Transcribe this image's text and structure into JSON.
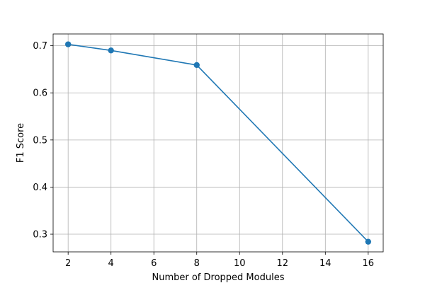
{
  "chart_data": {
    "type": "line",
    "title": "",
    "xlabel": "Number of Dropped Modules",
    "ylabel": "F1 Score",
    "xlim": [
      1.3,
      16.7
    ],
    "ylim": [
      0.2625,
      0.725
    ],
    "xticks": [
      2,
      4,
      6,
      8,
      10,
      12,
      14,
      16
    ],
    "yticks": [
      0.3,
      0.4,
      0.5,
      0.6,
      0.7
    ],
    "xtick_labels": [
      "2",
      "4",
      "6",
      "8",
      "10",
      "12",
      "14",
      "16"
    ],
    "ytick_labels": [
      "0.3",
      "0.4",
      "0.5",
      "0.6",
      "0.7"
    ],
    "grid": true,
    "series": [
      {
        "x": [
          2,
          4,
          8,
          16
        ],
        "y": [
          0.703,
          0.69,
          0.659,
          0.284
        ],
        "color": "#1f77b4",
        "marker": "circle"
      }
    ]
  }
}
